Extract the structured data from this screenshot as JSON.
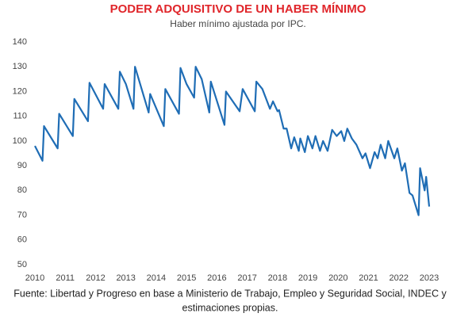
{
  "chart_data": {
    "type": "line",
    "title": "PODER ADQUISITIVO DE UN HABER MÍNIMO",
    "subtitle": "Haber mínimo ajustada por IPC.",
    "note": [
      "Fuente: Libertad y Progreso en base a Ministerio de Trabajo, Empleo y Seguridad Social, INDEC y",
      "estimaciones propias."
    ],
    "xlim": [
      2010,
      2023
    ],
    "xticks": [
      2010,
      2011,
      2012,
      2013,
      2014,
      2015,
      2016,
      2017,
      2018,
      2019,
      2020,
      2021,
      2022,
      2023
    ],
    "ylim": [
      50,
      140
    ],
    "yticks": [
      50,
      60,
      70,
      80,
      90,
      100,
      110,
      120,
      130,
      140
    ],
    "grid": false,
    "series": [
      {
        "name": "Haber mínimo",
        "color": "#1f6db5",
        "x": [
          2010.0,
          2010.25,
          2010.3,
          2010.75,
          2010.8,
          2011.25,
          2011.3,
          2011.75,
          2011.8,
          2012.25,
          2012.3,
          2012.75,
          2012.8,
          2013.0,
          2013.25,
          2013.3,
          2013.75,
          2013.8,
          2014.25,
          2014.3,
          2014.75,
          2014.8,
          2015.0,
          2015.25,
          2015.3,
          2015.5,
          2015.75,
          2015.8,
          2016.25,
          2016.3,
          2016.75,
          2016.85,
          2017.25,
          2017.3,
          2017.5,
          2017.75,
          2017.85,
          2018.0,
          2018.05,
          2018.2,
          2018.3,
          2018.45,
          2018.55,
          2018.7,
          2018.75,
          2018.9,
          2019.0,
          2019.15,
          2019.25,
          2019.4,
          2019.5,
          2019.65,
          2019.8,
          2019.95,
          2020.1,
          2020.2,
          2020.3,
          2020.45,
          2020.6,
          2020.8,
          2020.9,
          2021.05,
          2021.2,
          2021.3,
          2021.4,
          2021.55,
          2021.65,
          2021.85,
          2021.95,
          2022.1,
          2022.2,
          2022.35,
          2022.45,
          2022.65,
          2022.7,
          2022.85,
          2022.9,
          2023.0
        ],
        "values": [
          98,
          92,
          106,
          97,
          111,
          102,
          117,
          108,
          123.5,
          113,
          123,
          113,
          128,
          123,
          113,
          130,
          111.5,
          119,
          106,
          121,
          111,
          129.5,
          123,
          117.5,
          130,
          125,
          111.5,
          124,
          106.5,
          120,
          112,
          121,
          112,
          124,
          121,
          113,
          116,
          112,
          112.5,
          105,
          105,
          97,
          101.5,
          96,
          101,
          95.5,
          102,
          97,
          102,
          96,
          100,
          96,
          104.5,
          102,
          104,
          100,
          105,
          101,
          98.5,
          93,
          95,
          89,
          95.5,
          93,
          98.5,
          93,
          100,
          93,
          97,
          88,
          91,
          79,
          78,
          70,
          89,
          80,
          85.5,
          73.5
        ]
      }
    ]
  }
}
